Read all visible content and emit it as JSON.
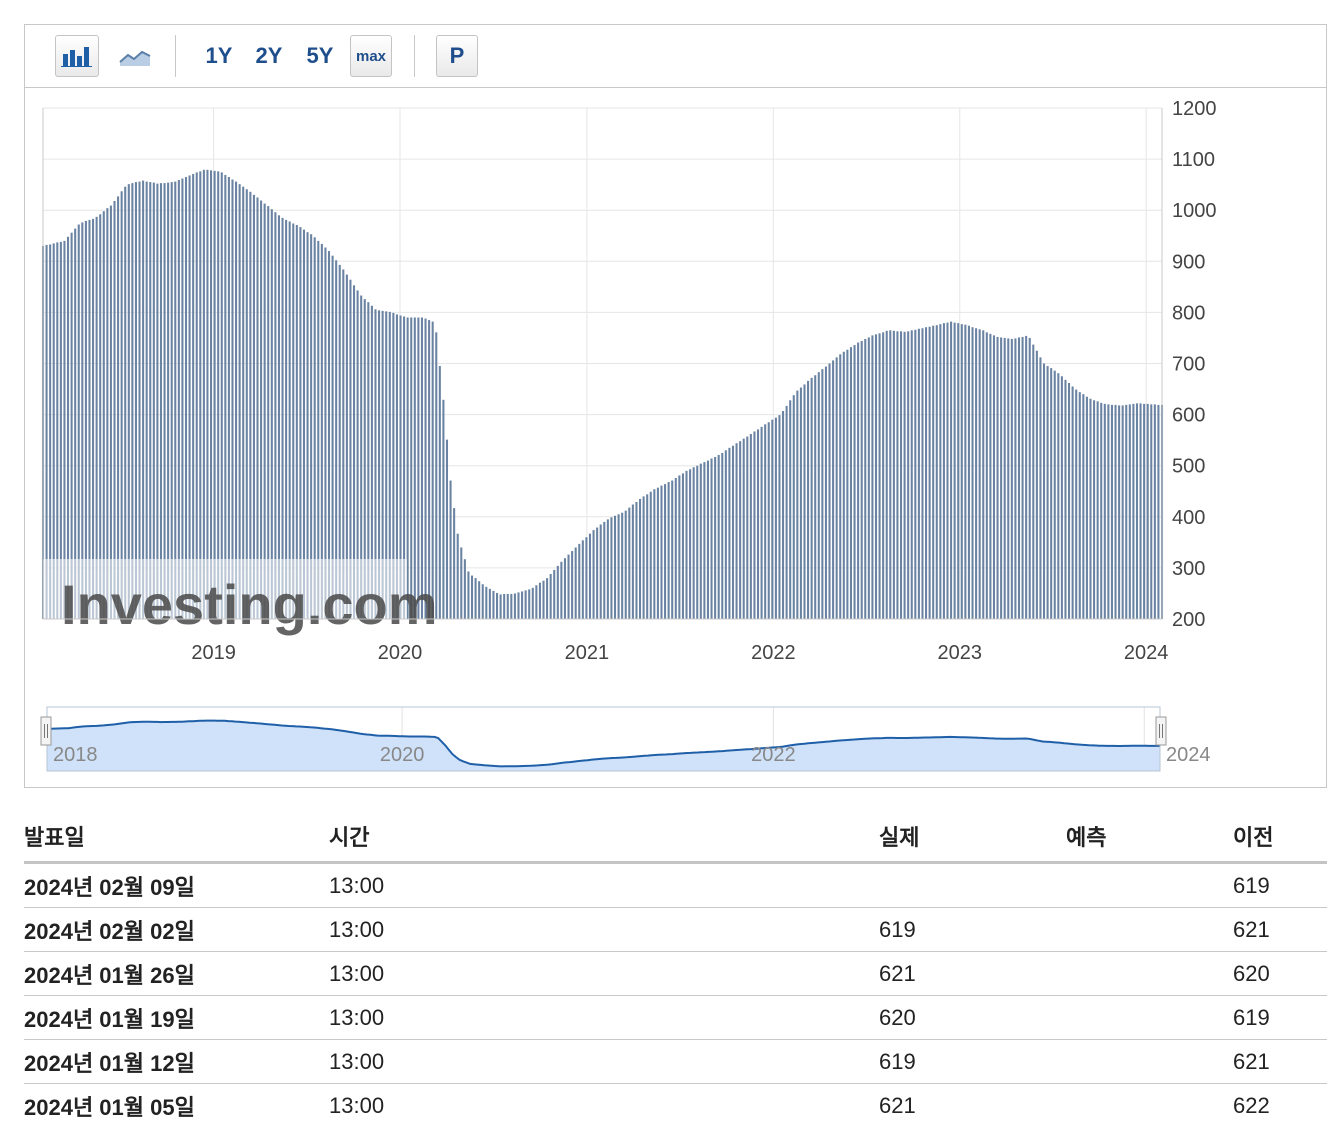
{
  "toolbar": {
    "bar_icon": "bar-chart-icon",
    "line_icon": "line-chart-icon",
    "range_1y": "1Y",
    "range_2y": "2Y",
    "range_5y": "5Y",
    "range_max": "max",
    "pin_label": "P"
  },
  "watermark": "Investing.com",
  "chart_data": {
    "type": "bar",
    "title": "",
    "xlabel": "",
    "ylabel": "",
    "x_range": [
      "2018-02",
      "2024-02"
    ],
    "ylim": [
      200,
      1200
    ],
    "y_ticks": [
      200,
      300,
      400,
      500,
      600,
      700,
      800,
      900,
      1000,
      1100,
      1200
    ],
    "x_ticks": [
      "2019",
      "2020",
      "2021",
      "2022",
      "2023",
      "2024"
    ],
    "grid": true,
    "bar_color": "#6a83a3",
    "anchors": [
      {
        "x": "2018-02-01",
        "y": 930
      },
      {
        "x": "2018-03-15",
        "y": 940
      },
      {
        "x": "2018-04-15",
        "y": 975
      },
      {
        "x": "2018-05-15",
        "y": 985
      },
      {
        "x": "2018-06-15",
        "y": 1010
      },
      {
        "x": "2018-07-15",
        "y": 1050
      },
      {
        "x": "2018-08-15",
        "y": 1058
      },
      {
        "x": "2018-09-15",
        "y": 1052
      },
      {
        "x": "2018-10-15",
        "y": 1055
      },
      {
        "x": "2018-11-15",
        "y": 1068
      },
      {
        "x": "2018-12-15",
        "y": 1080
      },
      {
        "x": "2019-01-15",
        "y": 1075
      },
      {
        "x": "2019-02-15",
        "y": 1055
      },
      {
        "x": "2019-03-15",
        "y": 1035
      },
      {
        "x": "2019-04-15",
        "y": 1010
      },
      {
        "x": "2019-05-15",
        "y": 985
      },
      {
        "x": "2019-06-15",
        "y": 970
      },
      {
        "x": "2019-07-15",
        "y": 950
      },
      {
        "x": "2019-08-15",
        "y": 920
      },
      {
        "x": "2019-09-15",
        "y": 880
      },
      {
        "x": "2019-10-15",
        "y": 835
      },
      {
        "x": "2019-11-15",
        "y": 805
      },
      {
        "x": "2019-12-15",
        "y": 800
      },
      {
        "x": "2020-01-15",
        "y": 790
      },
      {
        "x": "2020-02-15",
        "y": 790
      },
      {
        "x": "2020-03-10",
        "y": 780
      },
      {
        "x": "2020-03-27",
        "y": 620
      },
      {
        "x": "2020-04-10",
        "y": 460
      },
      {
        "x": "2020-04-24",
        "y": 360
      },
      {
        "x": "2020-05-15",
        "y": 290
      },
      {
        "x": "2020-06-15",
        "y": 265
      },
      {
        "x": "2020-07-15",
        "y": 248
      },
      {
        "x": "2020-08-15",
        "y": 250
      },
      {
        "x": "2020-09-15",
        "y": 260
      },
      {
        "x": "2020-10-15",
        "y": 280
      },
      {
        "x": "2020-11-15",
        "y": 315
      },
      {
        "x": "2020-12-15",
        "y": 345
      },
      {
        "x": "2021-01-15",
        "y": 375
      },
      {
        "x": "2021-02-15",
        "y": 398
      },
      {
        "x": "2021-03-15",
        "y": 410
      },
      {
        "x": "2021-04-15",
        "y": 435
      },
      {
        "x": "2021-05-15",
        "y": 455
      },
      {
        "x": "2021-06-15",
        "y": 470
      },
      {
        "x": "2021-07-15",
        "y": 490
      },
      {
        "x": "2021-08-15",
        "y": 505
      },
      {
        "x": "2021-09-15",
        "y": 520
      },
      {
        "x": "2021-10-15",
        "y": 540
      },
      {
        "x": "2021-11-15",
        "y": 560
      },
      {
        "x": "2021-12-15",
        "y": 580
      },
      {
        "x": "2022-01-15",
        "y": 600
      },
      {
        "x": "2022-02-15",
        "y": 645
      },
      {
        "x": "2022-03-15",
        "y": 670
      },
      {
        "x": "2022-04-15",
        "y": 695
      },
      {
        "x": "2022-05-15",
        "y": 720
      },
      {
        "x": "2022-06-15",
        "y": 740
      },
      {
        "x": "2022-07-15",
        "y": 755
      },
      {
        "x": "2022-08-15",
        "y": 765
      },
      {
        "x": "2022-09-15",
        "y": 762
      },
      {
        "x": "2022-10-15",
        "y": 768
      },
      {
        "x": "2022-11-15",
        "y": 775
      },
      {
        "x": "2022-12-15",
        "y": 782
      },
      {
        "x": "2023-01-15",
        "y": 775
      },
      {
        "x": "2023-02-15",
        "y": 765
      },
      {
        "x": "2023-03-15",
        "y": 752
      },
      {
        "x": "2023-04-15",
        "y": 748
      },
      {
        "x": "2023-05-15",
        "y": 755
      },
      {
        "x": "2023-06-15",
        "y": 700
      },
      {
        "x": "2023-07-15",
        "y": 680
      },
      {
        "x": "2023-08-15",
        "y": 650
      },
      {
        "x": "2023-09-15",
        "y": 630
      },
      {
        "x": "2023-10-15",
        "y": 620
      },
      {
        "x": "2023-11-15",
        "y": 618
      },
      {
        "x": "2023-12-15",
        "y": 622
      },
      {
        "x": "2024-01-15",
        "y": 620
      },
      {
        "x": "2024-02-02",
        "y": 619
      }
    ]
  },
  "navigator": {
    "labels": [
      "2018",
      "2020",
      "2022",
      "2024"
    ],
    "fill": "#cfe2f9",
    "line": "#1f5fa8"
  },
  "table": {
    "headers": {
      "date": "발표일",
      "time": "시간",
      "actual": "실제",
      "forecast": "예측",
      "previous": "이전"
    },
    "rows": [
      {
        "date": "2024년 02월 09일",
        "time": "13:00",
        "actual": "",
        "forecast": "",
        "previous": "619"
      },
      {
        "date": "2024년 02월 02일",
        "time": "13:00",
        "actual": "619",
        "forecast": "",
        "previous": "621"
      },
      {
        "date": "2024년 01월 26일",
        "time": "13:00",
        "actual": "621",
        "forecast": "",
        "previous": "620"
      },
      {
        "date": "2024년 01월 19일",
        "time": "13:00",
        "actual": "620",
        "forecast": "",
        "previous": "619"
      },
      {
        "date": "2024년 01월 12일",
        "time": "13:00",
        "actual": "619",
        "forecast": "",
        "previous": "621"
      },
      {
        "date": "2024년 01월 05일",
        "time": "13:00",
        "actual": "621",
        "forecast": "",
        "previous": "622"
      }
    ]
  }
}
